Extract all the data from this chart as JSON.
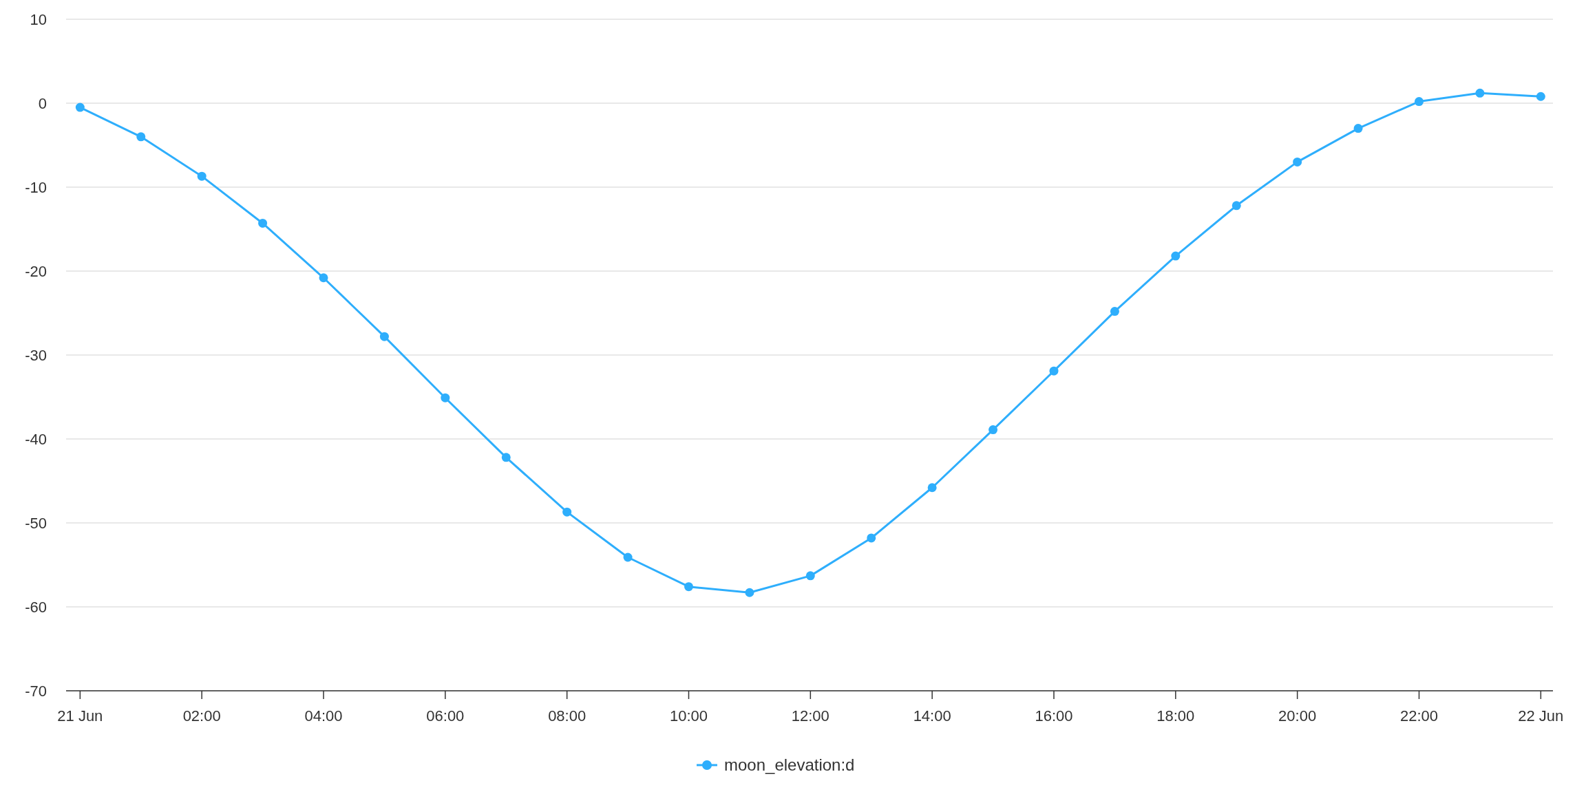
{
  "chart_data": {
    "type": "line",
    "x": [
      0,
      1,
      2,
      3,
      4,
      5,
      6,
      7,
      8,
      9,
      10,
      11,
      12,
      13,
      14,
      15,
      16,
      17,
      18,
      19,
      20,
      21,
      22,
      23,
      24
    ],
    "series": [
      {
        "name": "moon_elevation:d",
        "color": "#2eaefc",
        "values": [
          -0.5,
          -4.0,
          -8.7,
          -14.3,
          -20.8,
          -27.8,
          -35.1,
          -42.2,
          -48.7,
          -54.1,
          -57.6,
          -58.3,
          -56.3,
          -51.8,
          -45.8,
          -38.9,
          -31.9,
          -24.8,
          -18.2,
          -12.2,
          -7.0,
          -3.0,
          0.2,
          1.2,
          0.8
        ]
      }
    ],
    "xlim": [
      -0.23,
      24.2
    ],
    "xticks": [
      {
        "value": 0,
        "label": "21 Jun"
      },
      {
        "value": 2,
        "label": "02:00"
      },
      {
        "value": 4,
        "label": "04:00"
      },
      {
        "value": 6,
        "label": "06:00"
      },
      {
        "value": 8,
        "label": "08:00"
      },
      {
        "value": 10,
        "label": "10:00"
      },
      {
        "value": 12,
        "label": "12:00"
      },
      {
        "value": 14,
        "label": "14:00"
      },
      {
        "value": 16,
        "label": "16:00"
      },
      {
        "value": 18,
        "label": "18:00"
      },
      {
        "value": 20,
        "label": "20:00"
      },
      {
        "value": 22,
        "label": "22:00"
      },
      {
        "value": 24,
        "label": "22 Jun"
      }
    ],
    "ylim": [
      -70,
      10
    ],
    "yticks": [
      -70,
      -60,
      -50,
      -40,
      -30,
      -20,
      -10,
      0,
      10
    ],
    "grid": "y",
    "legend": "bottom",
    "marker": "circle",
    "line_style": "solid"
  }
}
